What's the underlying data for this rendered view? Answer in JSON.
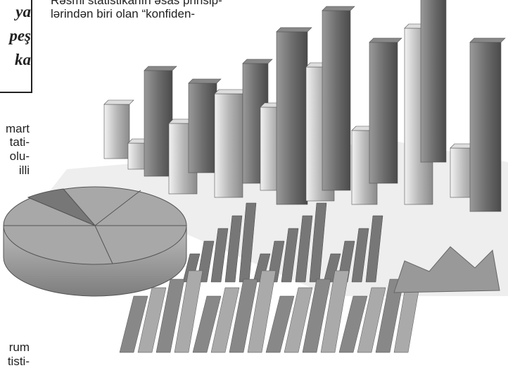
{
  "header_box": {
    "lines": [
      "ya",
      "peş",
      "ka"
    ]
  },
  "column_text": {
    "lines": [
      "Rəsmi statistikanın əsas prinsip-",
      "lərindən biri olan “konfiden-"
    ]
  },
  "left_text": {
    "lines": [
      "mart",
      "tati-",
      "olu-",
      "illi"
    ]
  },
  "left_bottom_text": {
    "lines": [
      "rum",
      "tisti-"
    ]
  }
}
